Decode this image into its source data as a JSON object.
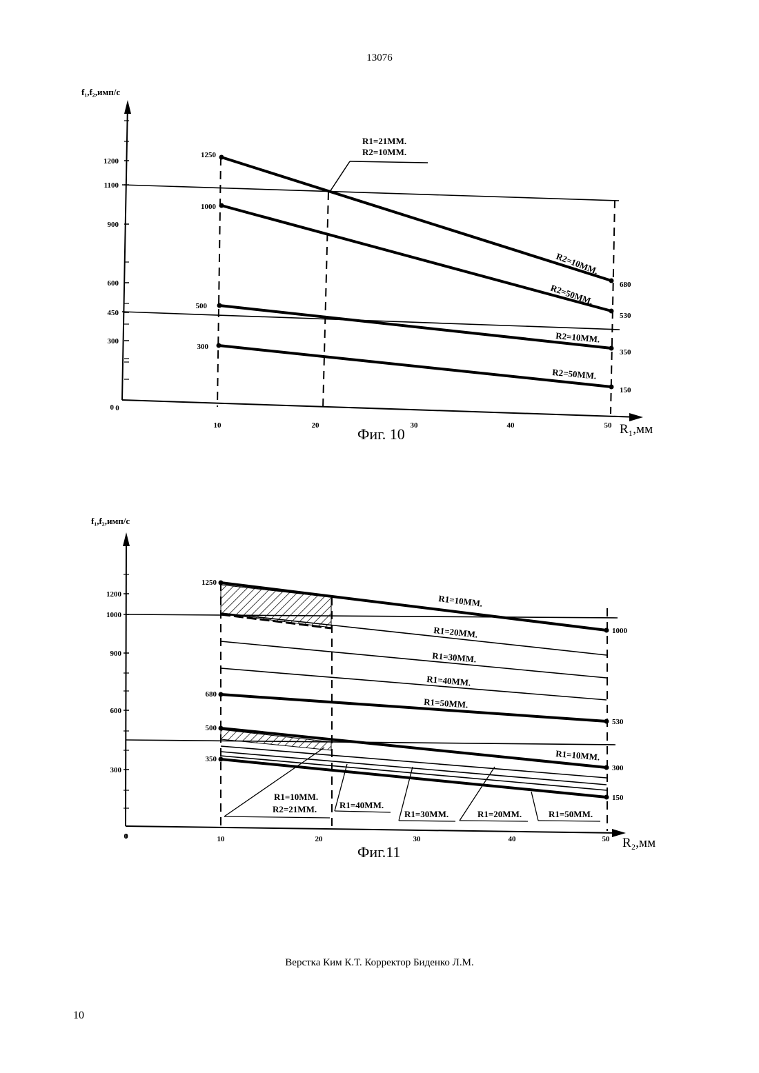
{
  "header": {
    "page_number_top": "13076"
  },
  "footer": {
    "credits": "Верстка Ким К.Т.  Корректор Биденко Л.М.",
    "page_number_bottom": "10"
  },
  "chart_data": [
    {
      "type": "line",
      "title": "Фиг. 10",
      "ylabel": "f₁,f₂,имп/с",
      "xlabel": "R₁,мм",
      "y_ticks": [
        "0",
        "300",
        "450",
        "600",
        "900",
        "1100",
        "1200"
      ],
      "x_ticks": [
        "0",
        "10",
        "20",
        "30",
        "40",
        "50"
      ],
      "series": [
        {
          "name": "R2=10ММ.",
          "x": [
            10,
            50
          ],
          "y": [
            1250,
            680
          ],
          "labels": [
            "1250",
            "680"
          ]
        },
        {
          "name": "R2=50ММ.",
          "x": [
            10,
            50
          ],
          "y": [
            1000,
            530
          ],
          "labels": [
            "1000",
            "530"
          ]
        },
        {
          "name": "R2=10ММ.",
          "x": [
            10,
            50
          ],
          "y": [
            500,
            350
          ],
          "labels": [
            "500",
            "350"
          ]
        },
        {
          "name": "R2=50ММ.",
          "x": [
            10,
            50
          ],
          "y": [
            300,
            150
          ],
          "labels": [
            "300",
            "150"
          ]
        }
      ],
      "threshold_lines": [
        {
          "from": [
            0,
            1100
          ],
          "to": [
            50,
            1020
          ]
        },
        {
          "from": [
            0,
            450
          ],
          "to": [
            50,
            360
          ]
        }
      ],
      "annotation": {
        "lines": [
          "R1=21ММ.",
          "R2=10ММ."
        ],
        "point": [
          21,
          1068
        ]
      }
    },
    {
      "type": "line",
      "title": "Фиг.11",
      "ylabel": "f₁,f₂,имп/с",
      "xlabel": "R₂,мм",
      "y_ticks": [
        "0",
        "300",
        "600",
        "900",
        "1000",
        "1200"
      ],
      "x_ticks": [
        "0",
        "10",
        "20",
        "30",
        "40",
        "50"
      ],
      "upper_series": [
        {
          "name": "R1=10ММ.",
          "x": [
            10,
            50
          ],
          "y": [
            1250,
            1000
          ],
          "labels": [
            "1250",
            "1000"
          ],
          "bold": true
        },
        {
          "name": "R1=20ММ.",
          "x": [
            10,
            50
          ],
          "y": [
            1010,
            875
          ],
          "bold": false
        },
        {
          "name": "R1=30ММ.",
          "x": [
            10,
            50
          ],
          "y": [
            905,
            760
          ],
          "bold": false
        },
        {
          "name": "R1=40ММ.",
          "x": [
            10,
            50
          ],
          "y": [
            800,
            660
          ],
          "bold": false
        },
        {
          "name": "R1=50ММ.",
          "x": [
            10,
            50
          ],
          "y": [
            680,
            530
          ],
          "labels": [
            "680",
            "530"
          ],
          "bold": true
        }
      ],
      "lower_series": [
        {
          "name": "R1=10ММ.",
          "x": [
            10,
            50
          ],
          "y": [
            500,
            300
          ],
          "labels": [
            "500",
            "300"
          ],
          "bold": true
        },
        {
          "name": "R1=20ММ.",
          "x": [
            10,
            50
          ],
          "y": [
            460,
            265
          ],
          "bold": false
        },
        {
          "name": "R1=30ММ.",
          "x": [
            10,
            50
          ],
          "y": [
            430,
            230
          ],
          "bold": false
        },
        {
          "name": "R1=40ММ.",
          "x": [
            10,
            50
          ],
          "y": [
            400,
            195
          ],
          "bold": false
        },
        {
          "name": "R1=50ММ.",
          "x": [
            10,
            50
          ],
          "y": [
            350,
            150
          ],
          "labels": [
            "350",
            "150"
          ],
          "bold": true
        }
      ],
      "threshold_lines": [
        {
          "from": [
            0,
            1000
          ],
          "to": [
            50,
            985
          ]
        },
        {
          "from": [
            0,
            450
          ],
          "to": [
            50,
            435
          ]
        }
      ],
      "annotations": [
        "R1=10ММ.",
        "R2=21ММ.",
        "R1=40ММ.",
        "R1=30ММ.",
        "R1=20ММ.",
        "R1=50ММ."
      ]
    }
  ]
}
